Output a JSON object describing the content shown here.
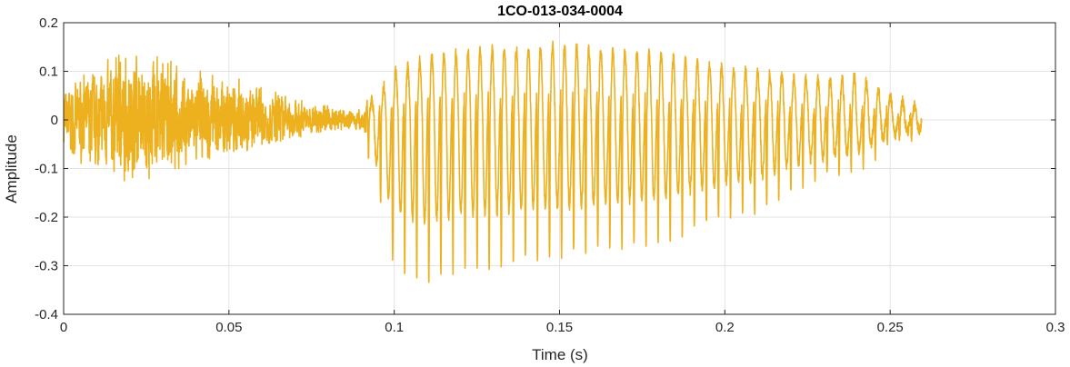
{
  "chart_data": {
    "type": "line",
    "title": "1CO-013-034-0004",
    "xlabel": "Time (s)",
    "ylabel": "Amplitude",
    "xlim": [
      0,
      0.3
    ],
    "ylim": [
      -0.4,
      0.2
    ],
    "x_ticks": [
      0,
      0.05,
      0.1,
      0.15,
      0.2,
      0.25,
      0.3
    ],
    "x_tick_labels": [
      "0",
      "0.05",
      "0.1",
      "0.15",
      "0.2",
      "0.25",
      "0.3"
    ],
    "y_ticks": [
      -0.4,
      -0.3,
      -0.2,
      -0.1,
      0,
      0.1,
      0.2
    ],
    "y_tick_labels": [
      "-0.4",
      "-0.3",
      "-0.2",
      "-0.1",
      "0",
      "0.1",
      "0.2"
    ],
    "grid": true,
    "series": [
      {
        "color": "#EDB120",
        "signal_end_time": 0.2595,
        "envelope": {
          "time": [
            0,
            0.005,
            0.01,
            0.02,
            0.03,
            0.04,
            0.05,
            0.06,
            0.07,
            0.08,
            0.09,
            0.093,
            0.1,
            0.11,
            0.12,
            0.13,
            0.14,
            0.15,
            0.16,
            0.17,
            0.18,
            0.19,
            0.2,
            0.21,
            0.22,
            0.23,
            0.24,
            0.25,
            0.2595
          ],
          "max": [
            0.08,
            0.1,
            0.13,
            0.14,
            0.13,
            0.11,
            0.1,
            0.07,
            0.05,
            0.03,
            0.025,
            0.05,
            0.12,
            0.16,
            0.17,
            0.18,
            0.18,
            0.19,
            0.18,
            0.17,
            0.17,
            0.15,
            0.13,
            0.12,
            0.11,
            0.1,
            0.11,
            0.06,
            0.03
          ],
          "min": [
            -0.06,
            -0.09,
            -0.09,
            -0.14,
            -0.11,
            -0.09,
            -0.08,
            -0.05,
            -0.04,
            -0.02,
            -0.02,
            -0.09,
            -0.3,
            -0.33,
            -0.3,
            -0.3,
            -0.28,
            -0.28,
            -0.27,
            -0.26,
            -0.25,
            -0.23,
            -0.2,
            -0.19,
            -0.14,
            -0.12,
            -0.1,
            -0.05,
            -0.03
          ]
        },
        "noisy_end_time": 0.092,
        "pitch_period": 0.00365,
        "seed": 7
      }
    ]
  }
}
